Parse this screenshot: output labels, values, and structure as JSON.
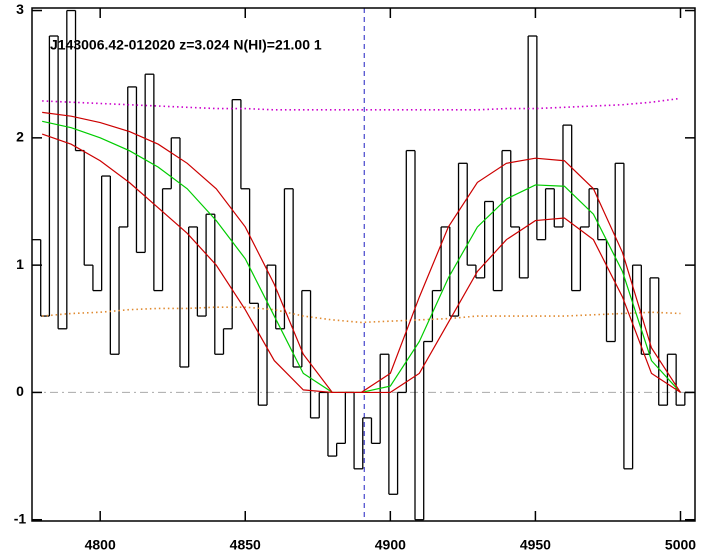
{
  "chart_data": {
    "type": "line",
    "annotation": "J143006.42-012020 z=3.024 N(HI)=21.00 1",
    "xlim": [
      4776.5,
      5005
    ],
    "ylim": [
      -1.01,
      3.02
    ],
    "xticks": [
      4800,
      4850,
      4900,
      4950,
      5000
    ],
    "yticks": [
      -1,
      0,
      1,
      2,
      3
    ],
    "reference_lines": [
      {
        "axis": "y",
        "value": 0,
        "color": "#aaaaaa",
        "style": "dashdot"
      },
      {
        "axis": "x",
        "value": 4891,
        "color": "#2020c0",
        "style": "dashed"
      }
    ],
    "series": [
      {
        "color": "#000000",
        "style": "step",
        "x": [
          4778,
          4781,
          4784,
          4787,
          4790,
          4793,
          4796,
          4799,
          4802,
          4805,
          4808,
          4811,
          4814,
          4817,
          4820,
          4823,
          4826,
          4829,
          4832,
          4835,
          4838,
          4841,
          4844,
          4847,
          4850,
          4853,
          4856,
          4859,
          4862,
          4865,
          4868,
          4871,
          4874,
          4877,
          4880,
          4883,
          4886,
          4889,
          4892,
          4895,
          4898,
          4901,
          4904,
          4907,
          4910,
          4913,
          4916,
          4919,
          4922,
          4925,
          4928,
          4931,
          4934,
          4937,
          4940,
          4943,
          4946,
          4949,
          4952,
          4955,
          4958,
          4961,
          4964,
          4967,
          4970,
          4973,
          4976,
          4979,
          4982,
          4985,
          4988,
          4991,
          4994,
          4997,
          5000,
          5003
        ],
        "values": [
          1.2,
          0.6,
          2.8,
          0.5,
          3.0,
          1.9,
          1.0,
          0.8,
          1.7,
          0.3,
          1.3,
          2.4,
          1.1,
          2.5,
          0.8,
          1.6,
          2.0,
          0.2,
          1.3,
          0.6,
          1.4,
          0.3,
          0.5,
          2.3,
          1.6,
          0.7,
          -0.1,
          1.0,
          0.5,
          1.6,
          0.2,
          0.8,
          -0.2,
          0.0,
          -0.5,
          -0.4,
          0.0,
          -0.6,
          -0.2,
          -0.4,
          0.3,
          -0.8,
          0.0,
          1.9,
          -1.0,
          0.4,
          0.8,
          1.3,
          0.6,
          1.8,
          1.0,
          0.9,
          1.5,
          0.8,
          1.9,
          1.3,
          0.9,
          2.8,
          1.2,
          1.6,
          1.3,
          2.1,
          0.8,
          1.3,
          1.6,
          1.2,
          0.4,
          1.8,
          -0.6,
          1.0,
          0.3,
          0.9,
          -0.1,
          0.3,
          -0.1,
          0.0
        ]
      },
      {
        "color": "#cc00cc",
        "style": "dotted",
        "x": [
          4780,
          4790,
          4800,
          4810,
          4820,
          4830,
          4840,
          4850,
          4860,
          4870,
          4880,
          4890,
          4900,
          4910,
          4920,
          4930,
          4940,
          4950,
          4960,
          4970,
          4980,
          4990,
          5000
        ],
        "values": [
          2.29,
          2.28,
          2.27,
          2.26,
          2.25,
          2.24,
          2.23,
          2.23,
          2.22,
          2.22,
          2.22,
          2.22,
          2.22,
          2.22,
          2.22,
          2.22,
          2.23,
          2.23,
          2.24,
          2.25,
          2.26,
          2.28,
          2.31
        ]
      },
      {
        "color": "#e08a30",
        "style": "dotted",
        "x": [
          4780,
          4790,
          4800,
          4810,
          4820,
          4830,
          4840,
          4850,
          4860,
          4870,
          4880,
          4890,
          4900,
          4910,
          4920,
          4930,
          4940,
          4950,
          4960,
          4970,
          4980,
          4990,
          5000
        ],
        "values": [
          0.6,
          0.62,
          0.63,
          0.65,
          0.66,
          0.66,
          0.67,
          0.67,
          0.65,
          0.6,
          0.57,
          0.55,
          0.56,
          0.57,
          0.58,
          0.6,
          0.6,
          0.6,
          0.6,
          0.61,
          0.62,
          0.63,
          0.62
        ]
      },
      {
        "color": "#00cc00",
        "style": "solid",
        "x": [
          4780,
          4790,
          4800,
          4810,
          4820,
          4830,
          4840,
          4850,
          4860,
          4870,
          4880,
          4890,
          4900,
          4910,
          4920,
          4930,
          4940,
          4950,
          4960,
          4970,
          4980,
          4990,
          5000
        ],
        "values": [
          2.13,
          2.08,
          2.0,
          1.9,
          1.77,
          1.6,
          1.35,
          1.05,
          0.6,
          0.15,
          0.0,
          0.0,
          0.05,
          0.4,
          0.9,
          1.3,
          1.52,
          1.63,
          1.62,
          1.4,
          0.95,
          0.25,
          0.0
        ]
      },
      {
        "color": "#cc0000",
        "style": "solid",
        "x": [
          4780,
          4790,
          4800,
          4810,
          4820,
          4830,
          4840,
          4850,
          4860,
          4870,
          4880,
          4890,
          4900,
          4910,
          4920,
          4930,
          4940,
          4950,
          4960,
          4970,
          4980,
          4990,
          5000
        ],
        "values": [
          2.2,
          2.17,
          2.12,
          2.05,
          1.95,
          1.8,
          1.6,
          1.3,
          0.85,
          0.3,
          0.0,
          0.0,
          0.15,
          0.75,
          1.3,
          1.65,
          1.8,
          1.84,
          1.82,
          1.6,
          1.1,
          0.35,
          0.0
        ]
      },
      {
        "color": "#cc0000",
        "style": "solid",
        "x": [
          4780,
          4790,
          4800,
          4810,
          4820,
          4830,
          4840,
          4850,
          4860,
          4870,
          4880,
          4890,
          4900,
          4910,
          4920,
          4930,
          4940,
          4950,
          4960,
          4970,
          4980,
          4990,
          5000
        ],
        "values": [
          2.03,
          1.95,
          1.82,
          1.65,
          1.45,
          1.25,
          1.0,
          0.65,
          0.25,
          0.02,
          0.0,
          0.0,
          0.0,
          0.15,
          0.55,
          0.95,
          1.2,
          1.35,
          1.37,
          1.2,
          0.75,
          0.15,
          0.0
        ]
      }
    ]
  }
}
